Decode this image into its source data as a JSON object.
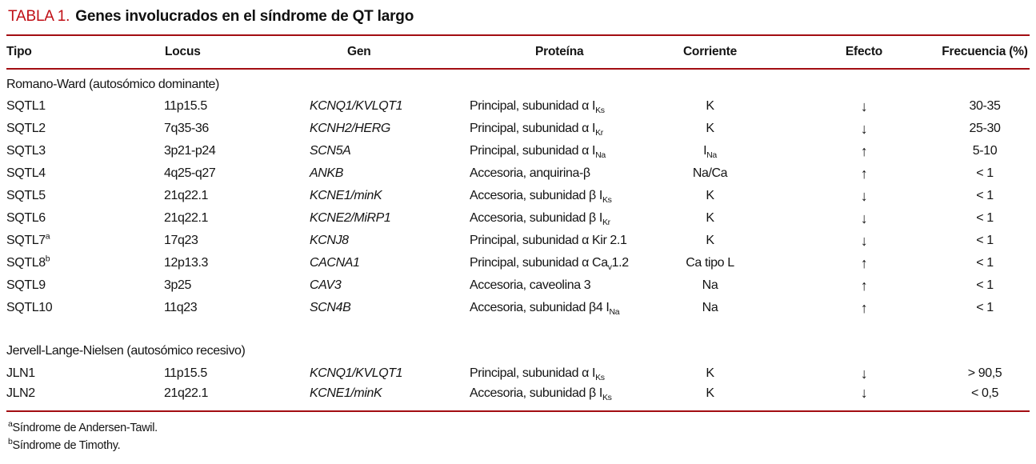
{
  "title": {
    "label": "TABLA 1.",
    "text": "Genes involucrados en el síndrome de QT largo"
  },
  "colors": {
    "title_red": "#c00f16",
    "rule_red": "#a30d12",
    "text": "#141414"
  },
  "table": {
    "columns": [
      {
        "key": "tipo",
        "label": "Tipo"
      },
      {
        "key": "locus",
        "label": "Locus"
      },
      {
        "key": "gen",
        "label": "Gen"
      },
      {
        "key": "proteina",
        "label": "Proteína"
      },
      {
        "key": "corriente",
        "label": "Corriente"
      },
      {
        "key": "efecto",
        "label": "Efecto"
      },
      {
        "key": "frecuencia",
        "label": "Frecuencia (%)"
      }
    ],
    "sections": [
      {
        "header": "Romano-Ward (autosómico dominante)",
        "rows": [
          {
            "tipo": "SQTL1",
            "locus": "11p15.5",
            "gen": "KCNQ1/KVLQT1",
            "proteina": "Principal, subunidad α I~Ks~",
            "corriente": "K",
            "efecto": "↓",
            "frecuencia": "30-35"
          },
          {
            "tipo": "SQTL2",
            "locus": "7q35-36",
            "gen": "KCNH2/HERG",
            "proteina": "Principal, subunidad α I~Kr~",
            "corriente": "K",
            "efecto": "↓",
            "frecuencia": "25-30"
          },
          {
            "tipo": "SQTL3",
            "locus": "3p21-p24",
            "gen": "SCN5A",
            "proteina": "Principal, subunidad α I~Na~",
            "corriente": "I~Na~",
            "efecto": "↑",
            "frecuencia": "5-10"
          },
          {
            "tipo": "SQTL4",
            "locus": "4q25-q27",
            "gen": "ANKB",
            "proteina": "Accesoria, anquirina-β",
            "corriente": "Na/Ca",
            "efecto": "↑",
            "frecuencia": "< 1"
          },
          {
            "tipo": "SQTL5",
            "locus": "21q22.1",
            "gen": "KCNE1/minK",
            "proteina": "Accesoria, subunidad β I~Ks~",
            "corriente": "K",
            "efecto": "↓",
            "frecuencia": "< 1"
          },
          {
            "tipo": "SQTL6",
            "locus": "21q22.1",
            "gen": "KCNE2/MiRP1",
            "proteina": "Accesoria, subunidad β I~Kr~",
            "corriente": "K",
            "efecto": "↓",
            "frecuencia": "< 1"
          },
          {
            "tipo": "SQTL7^a^",
            "locus": "17q23",
            "gen": "KCNJ8",
            "proteina": "Principal, subunidad α Kir 2.1",
            "corriente": "K",
            "efecto": "↓",
            "frecuencia": "< 1"
          },
          {
            "tipo": "SQTL8^b^",
            "locus": "12p13.3",
            "gen": "CACNA1",
            "proteina": "Principal, subunidad α Ca~v~1.2",
            "corriente": "Ca tipo L",
            "efecto": "↑",
            "frecuencia": "< 1"
          },
          {
            "tipo": "SQTL9",
            "locus": "3p25",
            "gen": "CAV3",
            "proteina": "Accesoria, caveolina 3",
            "corriente": "Na",
            "efecto": "↑",
            "frecuencia": "< 1"
          },
          {
            "tipo": "SQTL10",
            "locus": "11q23",
            "gen": "SCN4B",
            "proteina": "Accesoria, subunidad β4 I~Na~",
            "corriente": "Na",
            "efecto": "↑",
            "frecuencia": "< 1"
          }
        ]
      },
      {
        "header": "Jervell-Lange-Nielsen (autosómico recesivo)",
        "rows": [
          {
            "tipo": "JLN1",
            "locus": "11p15.5",
            "gen": "KCNQ1/KVLQT1",
            "proteina": "Principal, subunidad α I~Ks~",
            "corriente": "K",
            "efecto": "↓",
            "frecuencia": "> 90,5"
          },
          {
            "tipo": "JLN2",
            "locus": "21q22.1",
            "gen": "KCNE1/minK",
            "proteina": "Accesoria, subunidad β I~Ks~",
            "corriente": "K",
            "efecto": "↓",
            "frecuencia": "< 0,5"
          }
        ]
      }
    ]
  },
  "footnotes": [
    "^a^Síndrome de Andersen-Tawil.",
    "^b^Síndrome de Timothy."
  ]
}
